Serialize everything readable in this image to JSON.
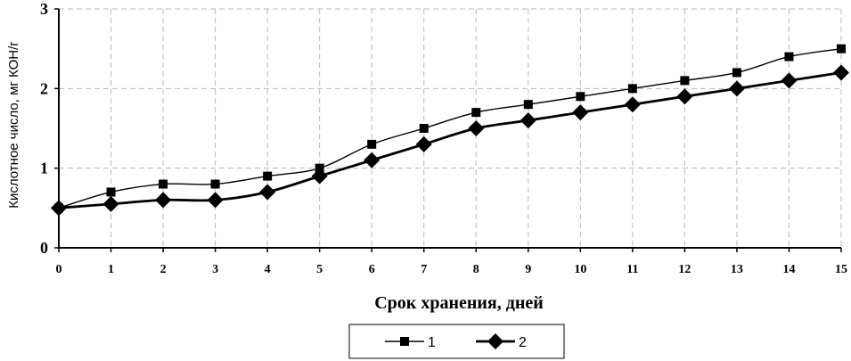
{
  "chart_data": {
    "type": "line",
    "xlabel": "Срок хранения, дней",
    "ylabel": "Кислотное число, мг КОН/г",
    "x": [
      0,
      1,
      2,
      3,
      4,
      5,
      6,
      7,
      8,
      9,
      10,
      11,
      12,
      13,
      14,
      15
    ],
    "xlim": [
      0,
      15
    ],
    "ylim": [
      0,
      3
    ],
    "x_ticks": [
      "0",
      "1",
      "2",
      "3",
      "4",
      "5",
      "6",
      "7",
      "8",
      "9",
      "10",
      "11",
      "12",
      "13",
      "14",
      "15"
    ],
    "y_ticks": [
      "0",
      "1",
      "2",
      "3"
    ],
    "grid": true,
    "legend_position": "bottom",
    "series": [
      {
        "name": "1",
        "marker": "square",
        "color": "#000000",
        "values": [
          0.5,
          0.7,
          0.8,
          0.8,
          0.9,
          1.0,
          1.3,
          1.5,
          1.7,
          1.8,
          1.9,
          2.0,
          2.1,
          2.2,
          2.4,
          2.5
        ]
      },
      {
        "name": "2",
        "marker": "diamond",
        "color": "#000000",
        "values": [
          0.5,
          0.55,
          0.6,
          0.6,
          0.7,
          0.9,
          1.1,
          1.3,
          1.5,
          1.6,
          1.7,
          1.8,
          1.9,
          2.0,
          2.1,
          2.2
        ]
      }
    ]
  }
}
